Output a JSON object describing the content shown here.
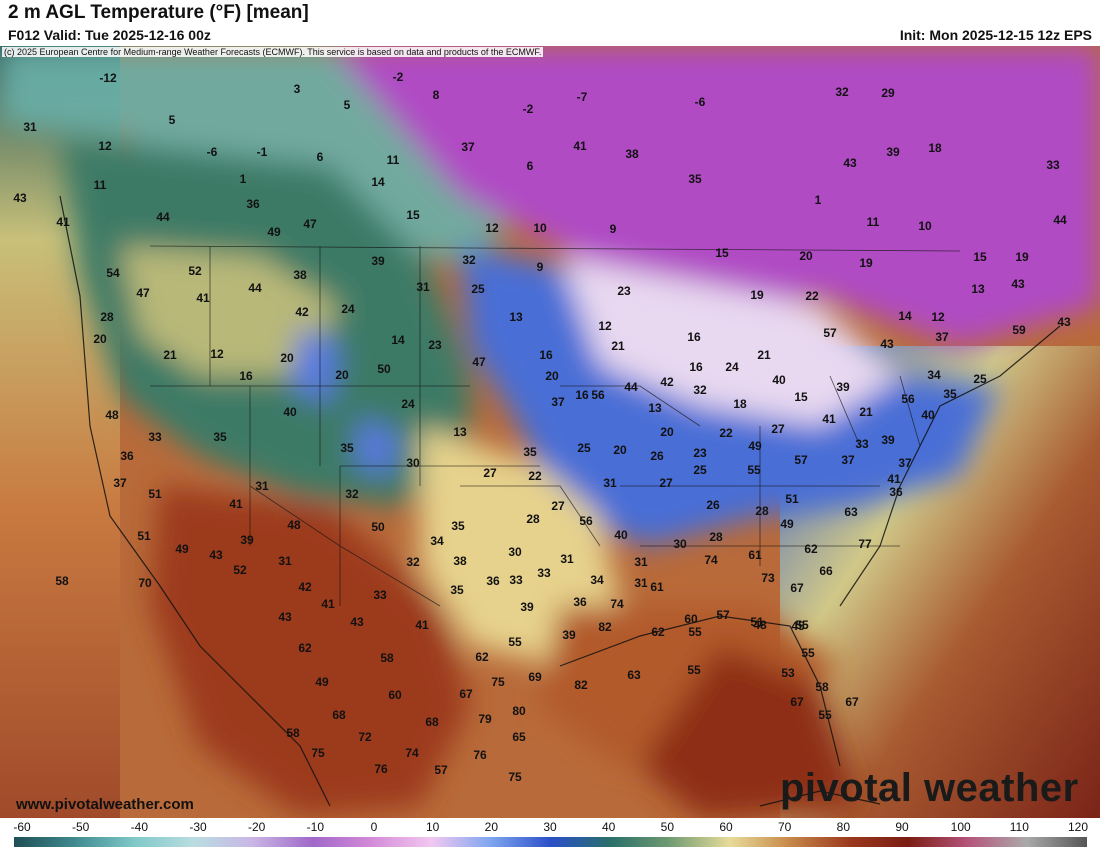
{
  "header": {
    "title": "2 m AGL Temperature (°F) [mean]",
    "valid": "F012 Valid: Tue 2025-12-16 00z",
    "init": "Init: Mon 2025-12-15 12z EPS"
  },
  "copyright": "(c) 2025 European Centre for Medium-range Weather Forecasts (ECMWF). This service is based on data and products of the ECMWF.",
  "website": "www.pivotalweather.com",
  "logo_text": "pivotal weather",
  "colorbar": {
    "ticks": [
      "-60",
      "-50",
      "-40",
      "-30",
      "-20",
      "-10",
      "0",
      "10",
      "20",
      "30",
      "40",
      "50",
      "60",
      "70",
      "80",
      "90",
      "100",
      "110",
      "120"
    ],
    "range_f": [
      -60,
      120
    ]
  },
  "map": {
    "region": "CONUS",
    "colors": {
      "ocean_west": "#d9b56a",
      "ocean_east": "#8a4a2c",
      "cold": "#b040c0",
      "freezing": "#3060d0",
      "mild": "#2f6a5a",
      "warm": "#e8d48a",
      "hot": "#8b2a14"
    },
    "temperature_labels": [
      "-12",
      "3",
      "-2",
      "8",
      "-2",
      "-7",
      "-6",
      "32",
      "29",
      "31",
      "5",
      "5",
      "37",
      "41",
      "38",
      "39",
      "18",
      "12",
      "-6",
      "-1",
      "6",
      "11",
      "6",
      "35",
      "43",
      "33",
      "11",
      "1",
      "14",
      "1",
      "11",
      "10",
      "44",
      "43",
      "44",
      "36",
      "15",
      "12",
      "10",
      "9",
      "15",
      "20",
      "19",
      "15",
      "19",
      "41",
      "49",
      "47",
      "39",
      "32",
      "9",
      "23",
      "19",
      "22",
      "13",
      "43",
      "54",
      "52",
      "38",
      "31",
      "25",
      "13",
      "12",
      "16",
      "14",
      "12",
      "59",
      "47",
      "41",
      "44",
      "42",
      "24",
      "16",
      "21",
      "16",
      "24",
      "21",
      "57",
      "43",
      "37",
      "43",
      "28",
      "21",
      "20",
      "14",
      "23",
      "20",
      "56",
      "44",
      "42",
      "32",
      "40",
      "39",
      "34",
      "25",
      "20",
      "12",
      "16",
      "20",
      "50",
      "47",
      "37",
      "16",
      "18",
      "15",
      "21",
      "56",
      "35",
      "48",
      "40",
      "24",
      "13",
      "13",
      "22",
      "27",
      "41",
      "40",
      "33",
      "35",
      "35",
      "25",
      "20",
      "20",
      "23",
      "49",
      "39",
      "41",
      "37",
      "36",
      "35",
      "30",
      "27",
      "22",
      "26",
      "25",
      "55",
      "57",
      "37",
      "33",
      "37",
      "31",
      "32",
      "31",
      "27",
      "26",
      "28",
      "51",
      "63",
      "36",
      "51",
      "41",
      "35",
      "34",
      "28",
      "27",
      "56",
      "40",
      "49",
      "51",
      "48",
      "50",
      "38",
      "32",
      "30",
      "31",
      "31",
      "30",
      "28",
      "61",
      "62",
      "77",
      "66",
      "70",
      "49",
      "43",
      "39",
      "31",
      "33",
      "33",
      "34",
      "31",
      "61",
      "74",
      "73",
      "67",
      "58",
      "52",
      "42",
      "41",
      "33",
      "35",
      "36",
      "36",
      "74",
      "60",
      "57",
      "48",
      "45",
      "43",
      "43",
      "41",
      "39",
      "39",
      "82",
      "62",
      "55",
      "51",
      "55",
      "62",
      "58",
      "62",
      "55",
      "82",
      "63",
      "55",
      "55",
      "49",
      "60",
      "67",
      "75",
      "69",
      "53",
      "58",
      "68",
      "68",
      "79",
      "80",
      "67",
      "55",
      "58",
      "72",
      "74",
      "76",
      "65",
      "67",
      "75",
      "76",
      "57",
      "75"
    ]
  }
}
